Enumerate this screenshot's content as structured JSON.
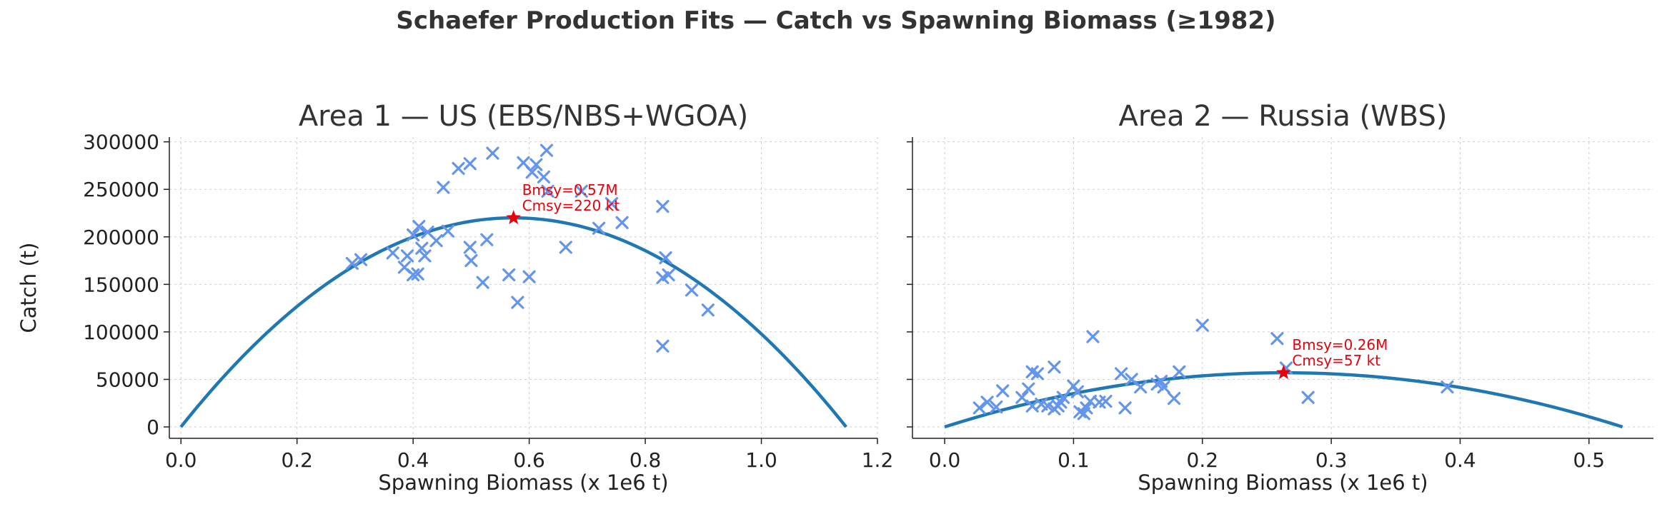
{
  "suptitle": "Schaefer Production Fits — Catch vs Spawning Biomass (≥1982)",
  "chart_data": [
    {
      "type": "scatter",
      "title": "Area 1 — US (EBS/NBS+WGOA)",
      "xlabel": "Spawning Biomass (x 1e6 t)",
      "ylabel": "Catch (t)",
      "xlim": [
        -0.02,
        1.2
      ],
      "ylim": [
        -12000,
        305000
      ],
      "xticks": [
        0.0,
        0.2,
        0.4,
        0.6,
        0.8,
        1.0,
        1.2
      ],
      "xtick_labels": [
        "0.0",
        "0.2",
        "0.4",
        "0.6",
        "0.8",
        "1.0",
        "1.2"
      ],
      "yticks": [
        0,
        50000,
        100000,
        150000,
        200000,
        250000,
        300000
      ],
      "ytick_labels": [
        "0",
        "50000",
        "100000",
        "150000",
        "200000",
        "250000",
        "300000"
      ],
      "grid": true,
      "curve": {
        "type": "schaefer",
        "bmsy": 0.573,
        "cmsy": 220000,
        "color": "#1f77b4"
      },
      "msy_point": {
        "x": 0.573,
        "y": 220000,
        "color": "#e8000b"
      },
      "annotation": [
        "Bmsy=0.57M",
        "Cmsy=220 kt"
      ],
      "points_color": "#6495ed",
      "points": [
        [
          0.295,
          172000
        ],
        [
          0.31,
          176000
        ],
        [
          0.365,
          183000
        ],
        [
          0.385,
          168000
        ],
        [
          0.39,
          180000
        ],
        [
          0.4,
          160000
        ],
        [
          0.408,
          161000
        ],
        [
          0.4,
          202000
        ],
        [
          0.41,
          211000
        ],
        [
          0.415,
          188000
        ],
        [
          0.42,
          180000
        ],
        [
          0.425,
          205000
        ],
        [
          0.44,
          196000
        ],
        [
          0.452,
          252000
        ],
        [
          0.46,
          206000
        ],
        [
          0.478,
          272000
        ],
        [
          0.498,
          277000
        ],
        [
          0.498,
          189000
        ],
        [
          0.5,
          175000
        ],
        [
          0.52,
          152000
        ],
        [
          0.527,
          197000
        ],
        [
          0.537,
          288000
        ],
        [
          0.565,
          160000
        ],
        [
          0.58,
          131000
        ],
        [
          0.59,
          278000
        ],
        [
          0.6,
          158000
        ],
        [
          0.605,
          268000
        ],
        [
          0.612,
          276000
        ],
        [
          0.625,
          263000
        ],
        [
          0.63,
          291000
        ],
        [
          0.632,
          248000
        ],
        [
          0.663,
          189000
        ],
        [
          0.69,
          248000
        ],
        [
          0.72,
          209000
        ],
        [
          0.742,
          235000
        ],
        [
          0.76,
          215000
        ],
        [
          0.83,
          232000
        ],
        [
          0.83,
          157000
        ],
        [
          0.835,
          178000
        ],
        [
          0.84,
          160000
        ],
        [
          0.83,
          85000
        ],
        [
          0.88,
          144000
        ],
        [
          0.908,
          123000
        ]
      ]
    },
    {
      "type": "scatter",
      "title": "Area 2 — Russia (WBS)",
      "xlabel": "Spawning Biomass (x 1e6 t)",
      "ylabel": "",
      "xlim": [
        -0.025,
        0.55
      ],
      "ylim": [
        -12000,
        305000
      ],
      "xticks": [
        0.0,
        0.1,
        0.2,
        0.3,
        0.4,
        0.5
      ],
      "xtick_labels": [
        "0.0",
        "0.1",
        "0.2",
        "0.3",
        "0.4",
        "0.5"
      ],
      "yticks": [
        0,
        50000,
        100000,
        150000,
        200000,
        250000,
        300000
      ],
      "grid": true,
      "curve": {
        "type": "schaefer",
        "bmsy": 0.263,
        "cmsy": 57000,
        "color": "#1f77b4"
      },
      "msy_point": {
        "x": 0.263,
        "y": 57000,
        "color": "#e8000b"
      },
      "annotation": [
        "Bmsy=0.26M",
        "Cmsy=57 kt"
      ],
      "points_color": "#6495ed",
      "points": [
        [
          0.027,
          20000
        ],
        [
          0.033,
          26000
        ],
        [
          0.04,
          21000
        ],
        [
          0.045,
          38000
        ],
        [
          0.06,
          31000
        ],
        [
          0.065,
          40000
        ],
        [
          0.068,
          58000
        ],
        [
          0.068,
          22000
        ],
        [
          0.072,
          56000
        ],
        [
          0.075,
          24000
        ],
        [
          0.08,
          22000
        ],
        [
          0.085,
          63000
        ],
        [
          0.085,
          19000
        ],
        [
          0.088,
          22000
        ],
        [
          0.09,
          26000
        ],
        [
          0.092,
          31000
        ],
        [
          0.1,
          43000
        ],
        [
          0.103,
          37000
        ],
        [
          0.105,
          16000
        ],
        [
          0.108,
          14000
        ],
        [
          0.11,
          20000
        ],
        [
          0.113,
          27000
        ],
        [
          0.115,
          95000
        ],
        [
          0.12,
          26000
        ],
        [
          0.125,
          27000
        ],
        [
          0.137,
          56000
        ],
        [
          0.14,
          20000
        ],
        [
          0.145,
          50000
        ],
        [
          0.152,
          42000
        ],
        [
          0.165,
          45000
        ],
        [
          0.168,
          48000
        ],
        [
          0.17,
          42000
        ],
        [
          0.178,
          30000
        ],
        [
          0.182,
          58000
        ],
        [
          0.2,
          107000
        ],
        [
          0.258,
          93000
        ],
        [
          0.265,
          62000
        ],
        [
          0.282,
          31000
        ],
        [
          0.39,
          42000
        ]
      ]
    }
  ]
}
